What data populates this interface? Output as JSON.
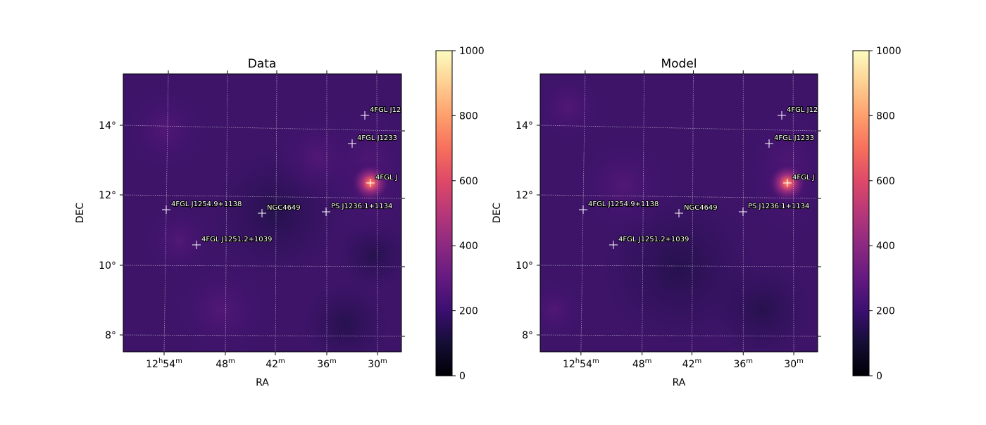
{
  "chart_data": [
    {
      "type": "heatmap",
      "title": "Data",
      "xlabel": "RA",
      "ylabel": "DEC",
      "x_ticks": [
        {
          "h": "12",
          "m": "54"
        },
        {
          "h": "",
          "m": "48"
        },
        {
          "h": "",
          "m": "42"
        },
        {
          "h": "",
          "m": "36"
        },
        {
          "h": "",
          "m": "30"
        }
      ],
      "y_ticks": [
        "14°",
        "12°",
        "10°",
        "8°"
      ],
      "colorbar": {
        "colormap": "magma",
        "range": [
          0,
          1000
        ],
        "ticks": [
          "0",
          "200",
          "400",
          "600",
          "800",
          "1000"
        ]
      },
      "sources": [
        {
          "label": "4FGL J12",
          "ra_label": "12h31.5m",
          "dec": 14.3
        },
        {
          "label": "4FGL J1233",
          "ra_label": "12h33m",
          "dec": 13.5
        },
        {
          "label": "4FGL J",
          "ra_label": "12h30.8m",
          "dec": 12.4
        },
        {
          "label": "4FGL J1254.9+1138",
          "ra_label": "12h54.9m",
          "dec": 11.63
        },
        {
          "label": "NGC4649",
          "ra_label": "12h43.7m",
          "dec": 11.55
        },
        {
          "label": "PS J1236.1+1134",
          "ra_label": "12h36.1m",
          "dec": 11.57
        },
        {
          "label": "4FGL J1251.2+1039",
          "ra_label": "12h51.2m",
          "dec": 10.65
        }
      ]
    },
    {
      "type": "heatmap",
      "title": "Model",
      "xlabel": "RA",
      "ylabel": "DEC",
      "x_ticks": [
        {
          "h": "12",
          "m": "54"
        },
        {
          "h": "",
          "m": "48"
        },
        {
          "h": "",
          "m": "42"
        },
        {
          "h": "",
          "m": "36"
        },
        {
          "h": "",
          "m": "30"
        }
      ],
      "y_ticks": [
        "14°",
        "12°",
        "10°",
        "8°"
      ],
      "colorbar": {
        "colormap": "magma",
        "range": [
          0,
          1000
        ],
        "ticks": [
          "0",
          "200",
          "400",
          "600",
          "800",
          "1000"
        ]
      },
      "sources": [
        {
          "label": "4FGL J12",
          "ra_label": "12h31.5m",
          "dec": 14.3
        },
        {
          "label": "4FGL J1233",
          "ra_label": "12h33m",
          "dec": 13.5
        },
        {
          "label": "4FGL J",
          "ra_label": "12h30.8m",
          "dec": 12.4
        },
        {
          "label": "4FGL J1254.9+1138",
          "ra_label": "12h54.9m",
          "dec": 11.63
        },
        {
          "label": "NGC4649",
          "ra_label": "12h43.7m",
          "dec": 11.55
        },
        {
          "label": "PS J1236.1+1134",
          "ra_label": "12h36.1m",
          "dec": 11.57
        },
        {
          "label": "4FGL J1251.2+1039",
          "ra_label": "12h51.2m",
          "dec": 10.65
        }
      ]
    }
  ]
}
